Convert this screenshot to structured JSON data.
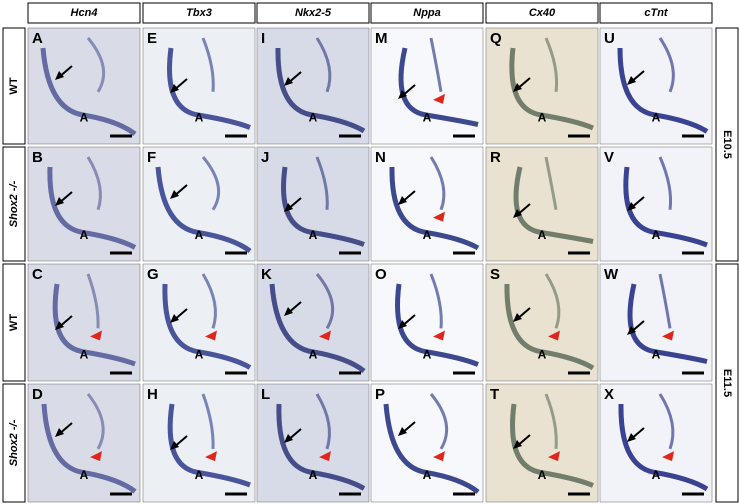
{
  "columns": [
    "Hcn4",
    "Tbx3",
    "Nkx2-5",
    "Nppa",
    "Cx40",
    "cTnt"
  ],
  "rows": [
    "WT",
    "Shox2 -/-",
    "WT",
    "Shox2 -/-"
  ],
  "stages": [
    "E10.5",
    "E11.5"
  ],
  "panels": [
    [
      {
        "letter": "A",
        "label": "A"
      },
      {
        "letter": "E",
        "label": "A"
      },
      {
        "letter": "I",
        "label": "A"
      },
      {
        "letter": "M",
        "label": "A"
      },
      {
        "letter": "Q",
        "label": "A"
      },
      {
        "letter": "U",
        "label": "A"
      }
    ],
    [
      {
        "letter": "B",
        "label": "A"
      },
      {
        "letter": "F",
        "label": "A"
      },
      {
        "letter": "J",
        "label": "A"
      },
      {
        "letter": "N",
        "label": "A"
      },
      {
        "letter": "R",
        "label": "A"
      },
      {
        "letter": "V",
        "label": "A"
      }
    ],
    [
      {
        "letter": "C",
        "label": "A"
      },
      {
        "letter": "G",
        "label": "A"
      },
      {
        "letter": "K",
        "label": "A"
      },
      {
        "letter": "O",
        "label": "A"
      },
      {
        "letter": "S",
        "label": "A"
      },
      {
        "letter": "W",
        "label": "A"
      }
    ],
    [
      {
        "letter": "D",
        "label": "A"
      },
      {
        "letter": "H",
        "label": "A"
      },
      {
        "letter": "L",
        "label": "A"
      },
      {
        "letter": "P",
        "label": "A"
      },
      {
        "letter": "T",
        "label": "A"
      },
      {
        "letter": "X",
        "label": "A"
      }
    ]
  ]
}
